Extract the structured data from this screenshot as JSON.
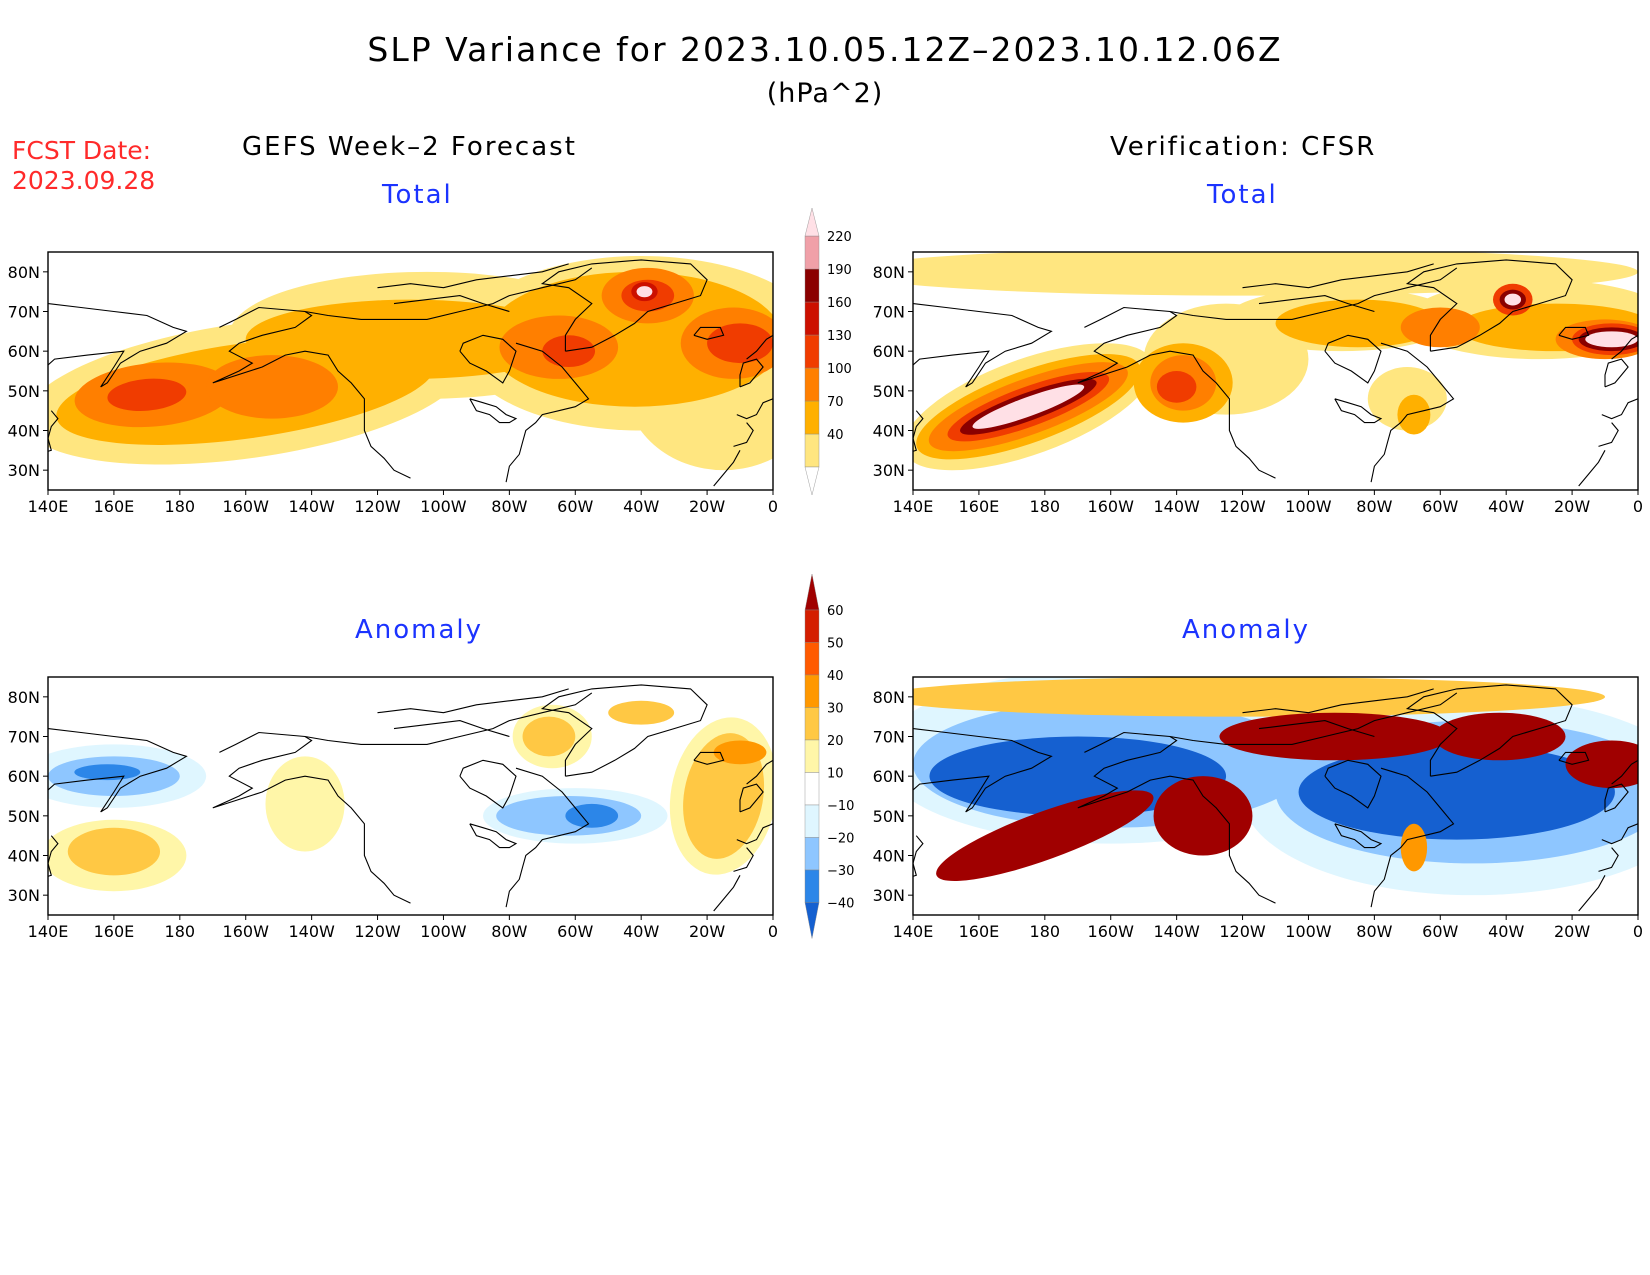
{
  "title": "SLP Variance for 2023.10.05.12Z–2023.10.12.06Z",
  "subtitle": "(hPa^2)",
  "fcst_date": {
    "line1": "FCST Date:",
    "line2": "2023.09.28"
  },
  "columns": {
    "left": "GEFS Week–2 Forecast",
    "right": "Verification: CFSR"
  },
  "panels": {
    "total_left": "Total",
    "total_right": "Total",
    "anom_left": "Anomaly",
    "anom_right": "Anomaly"
  },
  "lon_ticks": [
    "140E",
    "160E",
    "180",
    "160W",
    "140W",
    "120W",
    "100W",
    "80W",
    "60W",
    "40W",
    "20W",
    "0"
  ],
  "lat_ticks": [
    "80N",
    "70N",
    "60N",
    "50N",
    "40N",
    "30N"
  ],
  "colors": {
    "total": [
      "#ffffff",
      "#ffe680",
      "#ffb000",
      "#ff7f00",
      "#f03c00",
      "#cc1000",
      "#8b0000",
      "#f0a0a8",
      "#ffe0e6"
    ],
    "anomaly": [
      "#1560d0",
      "#2c86e8",
      "#8ec6ff",
      "#dff6ff",
      "#ffffff",
      "#fff6a8",
      "#ffc844",
      "#ff9800",
      "#ff5a00",
      "#d41e00",
      "#a00000"
    ],
    "coast": "#000000",
    "panel_title": "#1b33ff",
    "fcst_date": "#ff2a2a"
  },
  "colorbars": {
    "total": {
      "labels": [
        "220",
        "190",
        "160",
        "130",
        "100",
        "70",
        "40"
      ],
      "levels": [
        40,
        70,
        100,
        130,
        160,
        190,
        220
      ]
    },
    "anomaly": {
      "labels": [
        "60",
        "50",
        "40",
        "30",
        "20",
        "10",
        "−10",
        "−20",
        "−30",
        "−40"
      ],
      "levels": [
        60,
        50,
        40,
        30,
        20,
        10,
        -10,
        -20,
        -30,
        -40
      ]
    }
  }
}
